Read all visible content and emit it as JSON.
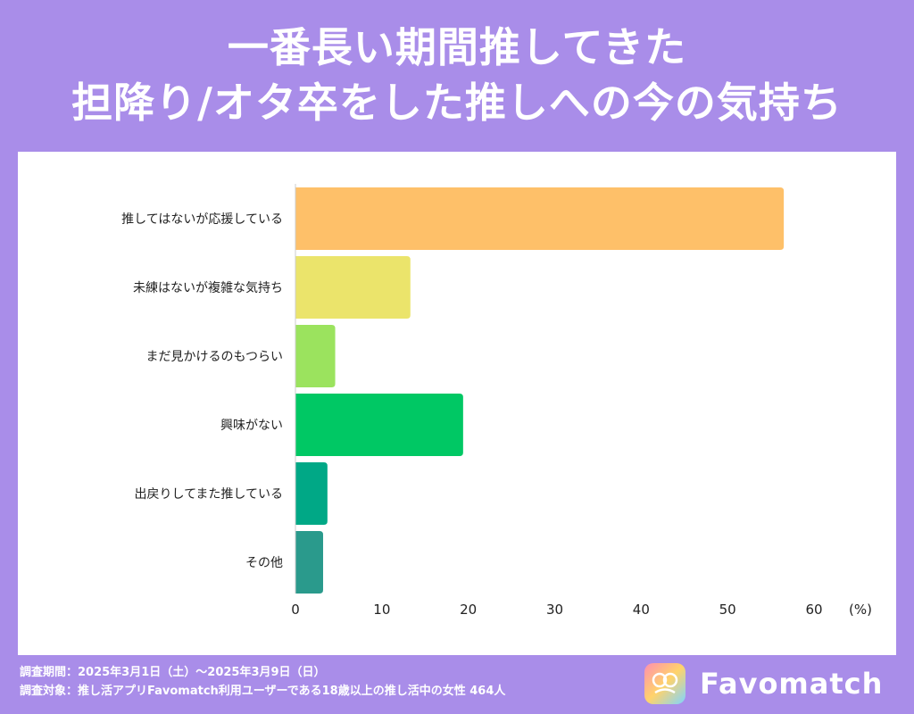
{
  "title_line1": "一番長い期間推してきた",
  "title_line2": "担降り/オタ卒をした推しへの今の気持ち",
  "chart_data": {
    "type": "bar",
    "orientation": "horizontal",
    "categories": [
      "推してはないが応援している",
      "未練はないが複雑な気持ち",
      "まだ見かけるのもつらい",
      "興味がない",
      "出戻りしてまた推している",
      "その他"
    ],
    "values": [
      56.5,
      13.3,
      4.6,
      19.4,
      3.7,
      3.2
    ],
    "colors": [
      "#fec069",
      "#ebe46b",
      "#9be35e",
      "#00c864",
      "#00a886",
      "#2a9a8c"
    ],
    "x_ticks": [
      "0",
      "10",
      "20",
      "30",
      "40",
      "50",
      "60"
    ],
    "xlim": [
      0,
      60
    ],
    "unit_label": "(%)",
    "grid": false
  },
  "footer": {
    "period": "調査期間：2025年3月1日（土）～2025年3月9日（日）",
    "target": "調査対象：推し活アプリFavomatch利用ユーザーである18歳以上の推し活中の女性 464人"
  },
  "brand": {
    "name": "Favomatch",
    "logo_icon": "favomatch-logo-icon"
  }
}
